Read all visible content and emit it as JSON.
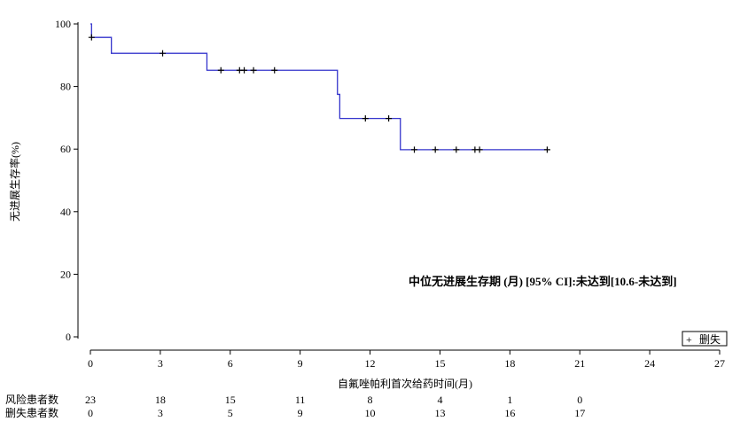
{
  "chart_data": {
    "type": "line",
    "subtype": "kaplan-meier",
    "ylabel": "无进展生存率(%)",
    "xlabel": "自氟唑帕利首次给药时间(月)",
    "xlim": [
      0,
      27
    ],
    "ylim": [
      0,
      100
    ],
    "xticks": [
      0,
      3,
      6,
      9,
      12,
      15,
      18,
      21,
      24,
      27
    ],
    "yticks": [
      0,
      20,
      40,
      60,
      80,
      100
    ],
    "series_color": "#3333cc",
    "steps": [
      {
        "x": 0,
        "y": 100
      },
      {
        "x": 0.05,
        "y": 95.7
      },
      {
        "x": 0.9,
        "y": 90.6
      },
      {
        "x": 5.0,
        "y": 85.2
      },
      {
        "x": 10.6,
        "y": 77.5
      },
      {
        "x": 10.7,
        "y": 69.8
      },
      {
        "x": 13.3,
        "y": 59.8
      }
    ],
    "end_x": 19.6,
    "censored": [
      {
        "x": 0.05,
        "y": 95.7
      },
      {
        "x": 3.1,
        "y": 90.6
      },
      {
        "x": 5.6,
        "y": 85.2
      },
      {
        "x": 6.4,
        "y": 85.2
      },
      {
        "x": 6.6,
        "y": 85.2
      },
      {
        "x": 7.0,
        "y": 85.2
      },
      {
        "x": 7.9,
        "y": 85.2
      },
      {
        "x": 11.8,
        "y": 69.8
      },
      {
        "x": 12.8,
        "y": 69.8
      },
      {
        "x": 13.9,
        "y": 59.8
      },
      {
        "x": 14.8,
        "y": 59.8
      },
      {
        "x": 15.7,
        "y": 59.8
      },
      {
        "x": 16.5,
        "y": 59.8
      },
      {
        "x": 16.7,
        "y": 59.8
      },
      {
        "x": 19.6,
        "y": 59.8
      }
    ],
    "legend": {
      "marker": "+",
      "label": "删失",
      "position": "bottom-right"
    },
    "annotation": "中位无进展生存期 (月) [95% CI]:未达到[10.6-未达到]",
    "risk_table": {
      "x": [
        0,
        3,
        6,
        9,
        12,
        15,
        18,
        21
      ],
      "rows": [
        {
          "label": "风险患者数",
          "values": [
            "23",
            "18",
            "15",
            "11",
            "8",
            "4",
            "1",
            "0"
          ]
        },
        {
          "label": "删失患者数",
          "values": [
            "0",
            "3",
            "5",
            "9",
            "10",
            "13",
            "16",
            "17"
          ]
        }
      ]
    }
  }
}
